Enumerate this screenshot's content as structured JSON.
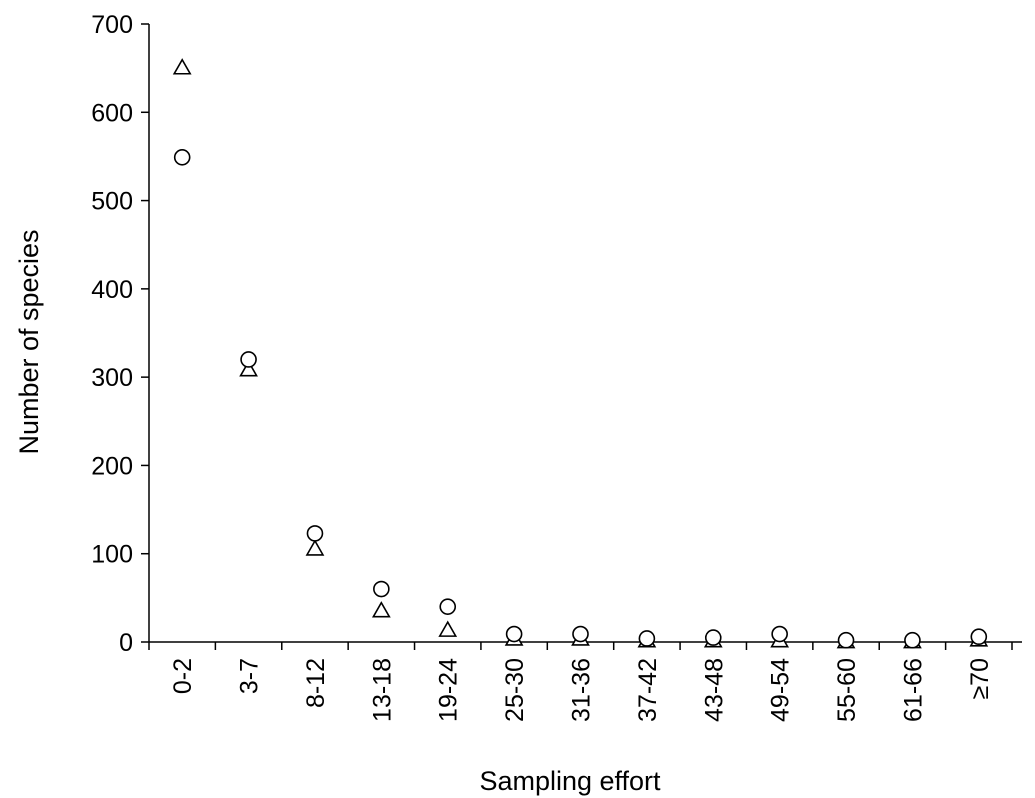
{
  "chart_data": {
    "type": "scatter",
    "title": "",
    "xlabel": "Sampling effort",
    "ylabel": "Number of species",
    "categories": [
      "0-2",
      "3-7",
      "8-12",
      "13-18",
      "19-24",
      "25-30",
      "31-36",
      "37-42",
      "43-48",
      "49-54",
      "55-60",
      "61-66",
      "≥70"
    ],
    "series": [
      {
        "marker": "circle",
        "values": [
          549,
          320,
          123,
          60,
          40,
          9,
          9,
          4,
          5,
          9,
          2,
          2,
          6
        ]
      },
      {
        "marker": "triangle",
        "values": [
          650,
          308,
          105,
          35,
          13,
          3,
          3,
          1,
          1,
          1,
          0,
          0,
          2
        ]
      }
    ],
    "ylim": [
      0,
      700
    ],
    "yticks": [
      0,
      100,
      200,
      300,
      400,
      500,
      600,
      700
    ],
    "grid": false,
    "legend": "none",
    "colors": {
      "axis": "#000000",
      "marker_stroke": "#000000",
      "marker_fill": "#ffffff",
      "background": "#ffffff"
    }
  }
}
